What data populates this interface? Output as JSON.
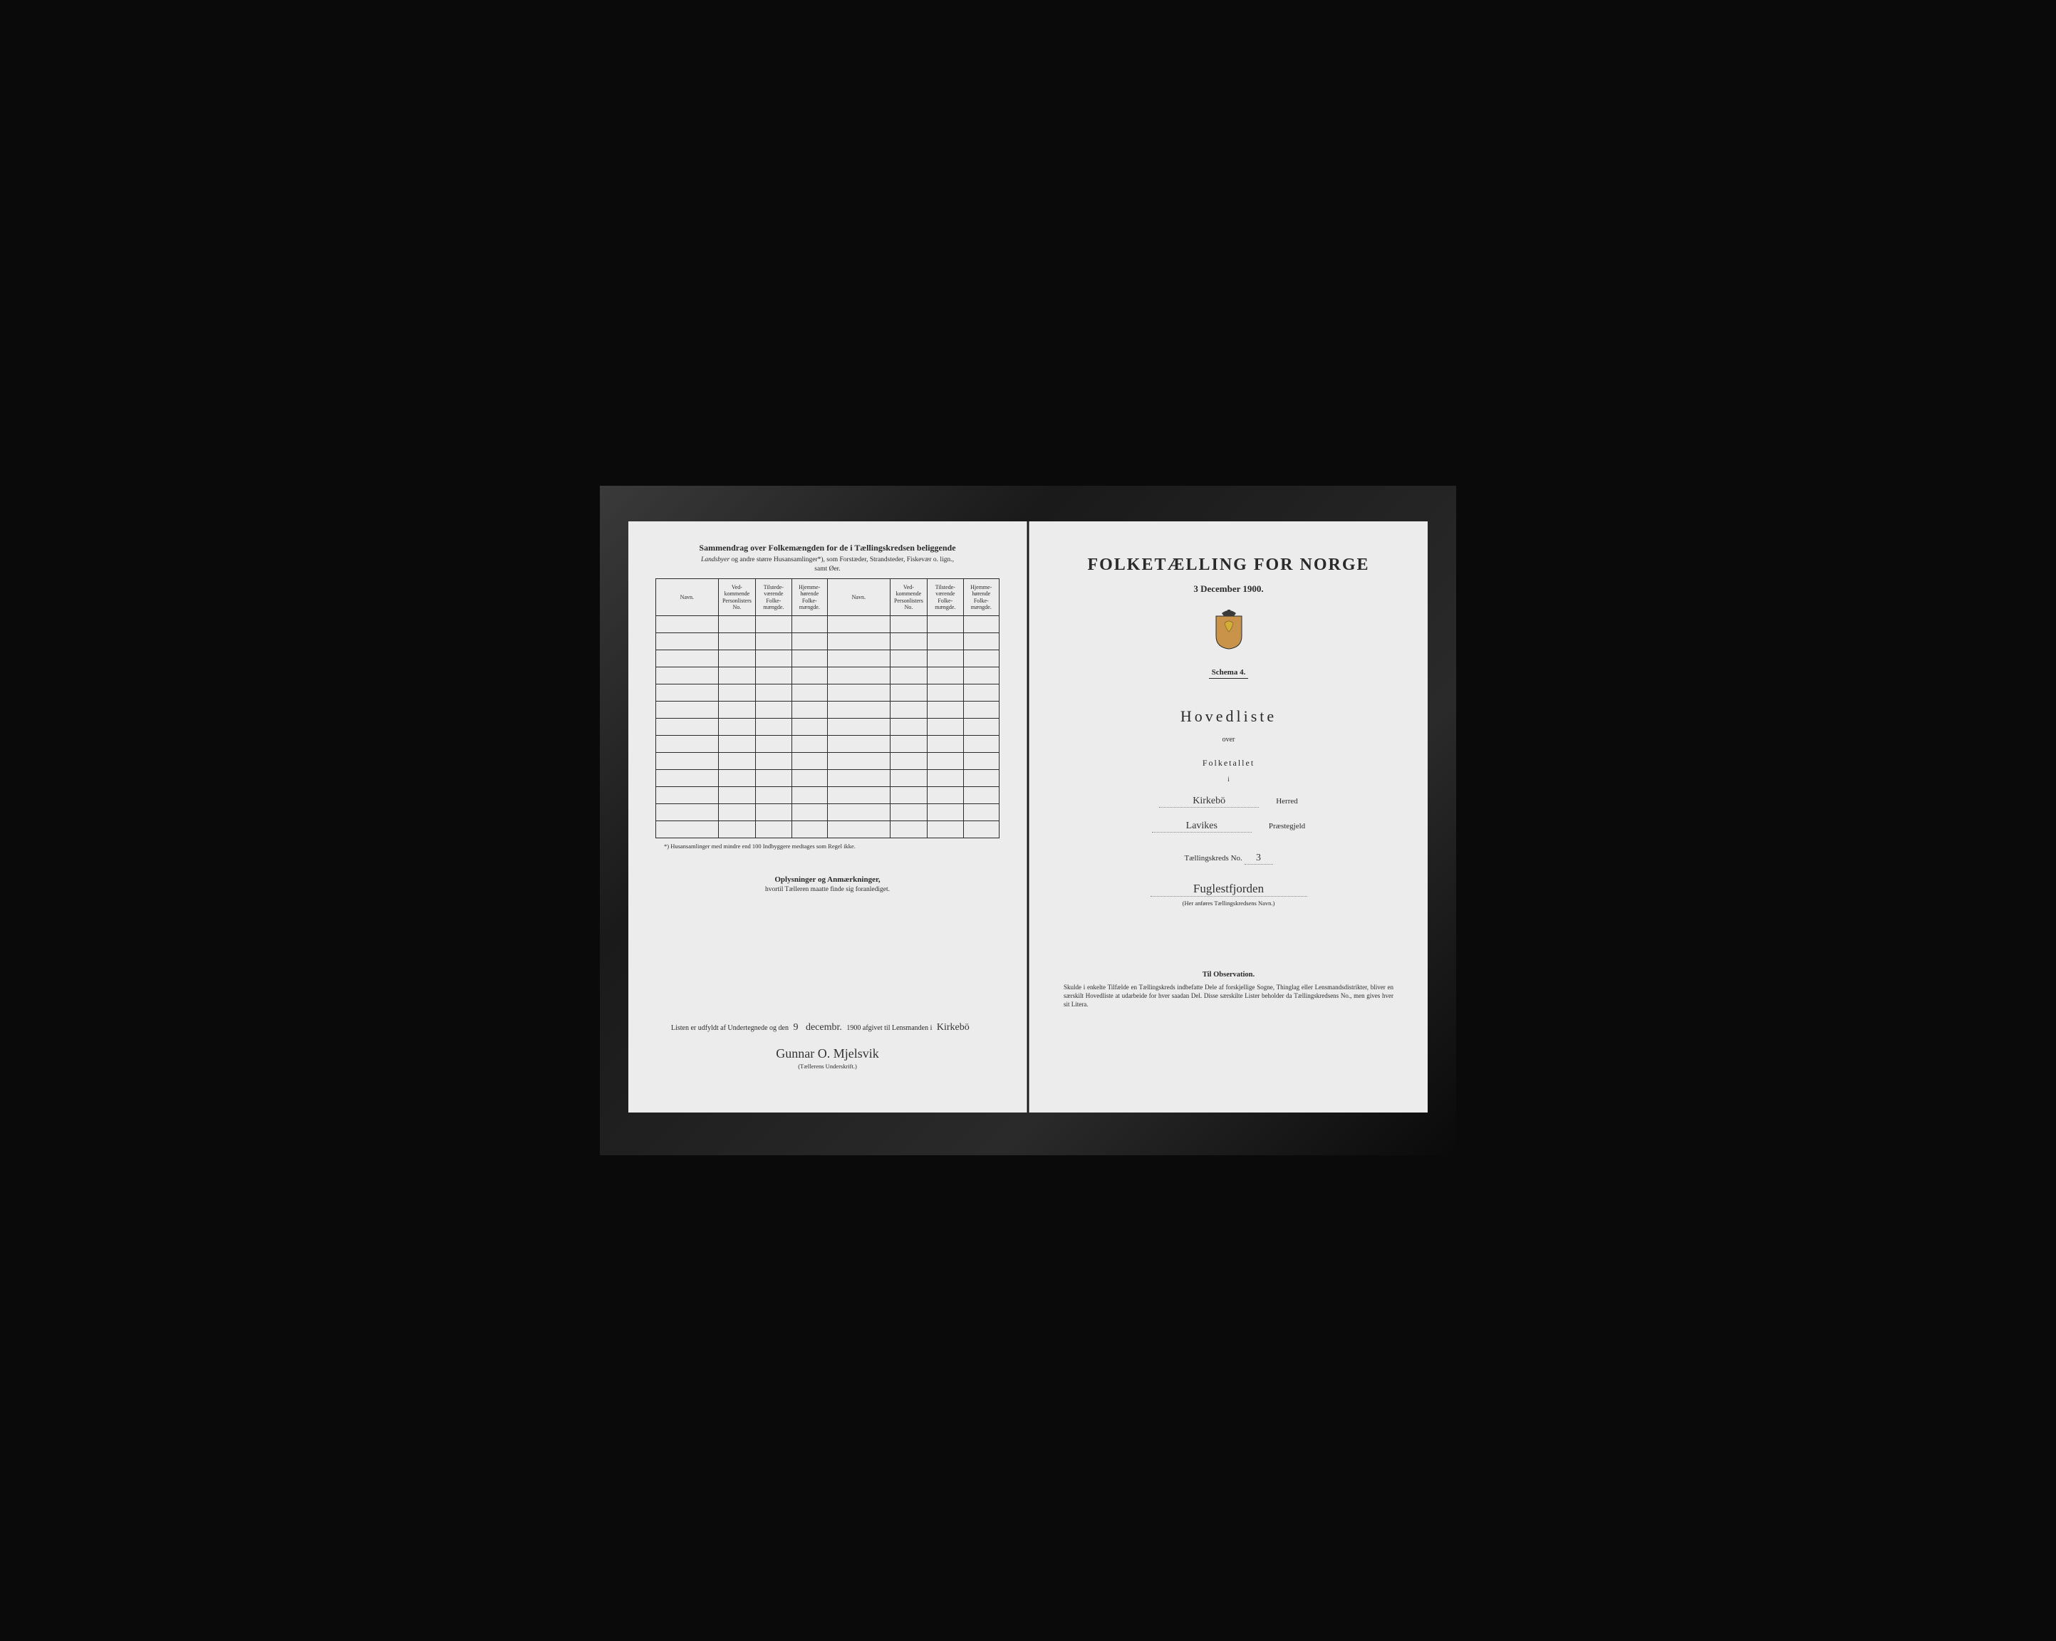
{
  "leftPage": {
    "summaryTitle": "Sammendrag over Folkemængden for de i Tællingskredsen beliggende",
    "summarySub1Prefix": "Landsbyer",
    "summarySub1Rest": " og andre større Husansamlinger*), som Forstæder, Strandsteder, Fiskevær o. lign.,",
    "summarySub2": "samt Øer.",
    "table": {
      "headers": {
        "name": "Navn.",
        "col2": "Ved-\nkommende\nPersonlisters\nNo.",
        "col3": "Tilstede-\nværende\nFolke-\nmængde.",
        "col4": "Hjemme-\nhørende\nFolke-\nmængde."
      },
      "rowCount": 13
    },
    "footnote": "*) Husansamlinger med mindre end 100 Indbyggere medtages som Regel ikke.",
    "remarksTitle": "Oplysninger og Anmærkninger,",
    "remarksSub": "hvortil Tælleren maatte finde sig foranlediget.",
    "signature": {
      "prefix": "Listen er udfyldt af Undertegnede og den",
      "dateDay": "9",
      "dateMonth": "decembr.",
      "dateYear": "1900",
      "mid": "afgivet til Lensmanden i",
      "place": "Kirkebö",
      "name": "Gunnar O. Mjelsvik",
      "label": "(Tællerens Underskrift.)"
    }
  },
  "rightPage": {
    "title": "FOLKETÆLLING FOR NORGE",
    "date": "3 December 1900.",
    "schemaLabel": "Schema 4.",
    "hovedliste": "Hovedliste",
    "over": "over",
    "folketallet": "Folketallet",
    "i": "i",
    "herred": {
      "value": "Kirkebö",
      "label": "Herred"
    },
    "praestegjeld": {
      "value": "Lavikes",
      "label": "Præstegjeld"
    },
    "kredsNoLabel": "Tællingskreds No.",
    "kredsNo": "3",
    "kredsName": "Fuglestfjorden",
    "kredsHint": "(Her anføres Tællingskredsens Navn.)",
    "observation": {
      "title": "Til Observation.",
      "body": "Skulde i enkelte Tilfælde en Tællingskreds indbefatte Dele af forskjellige Sogne, Thinglag eller Lensmandsdistrikter, bliver en særskilt Hovedliste at udarbeide for hver saadan Del. Disse særskilte Lister beholder da Tællingskredsens No., men gives hver sit Litera."
    }
  },
  "styling": {
    "pageBg": "#ececec",
    "frameBg": "#0a0a0a",
    "textColor": "#2a2a2a",
    "borderColor": "#2a2a2a",
    "crestColors": {
      "shield": "#c9944a",
      "lion": "#d4af37",
      "crown": "#3a3a3a"
    },
    "handwritingColor": "#333333",
    "pageWidthPx": 560,
    "pageHeightPx": 830,
    "titleFontSizePt": 24,
    "bodyFontSizePt": 10
  }
}
